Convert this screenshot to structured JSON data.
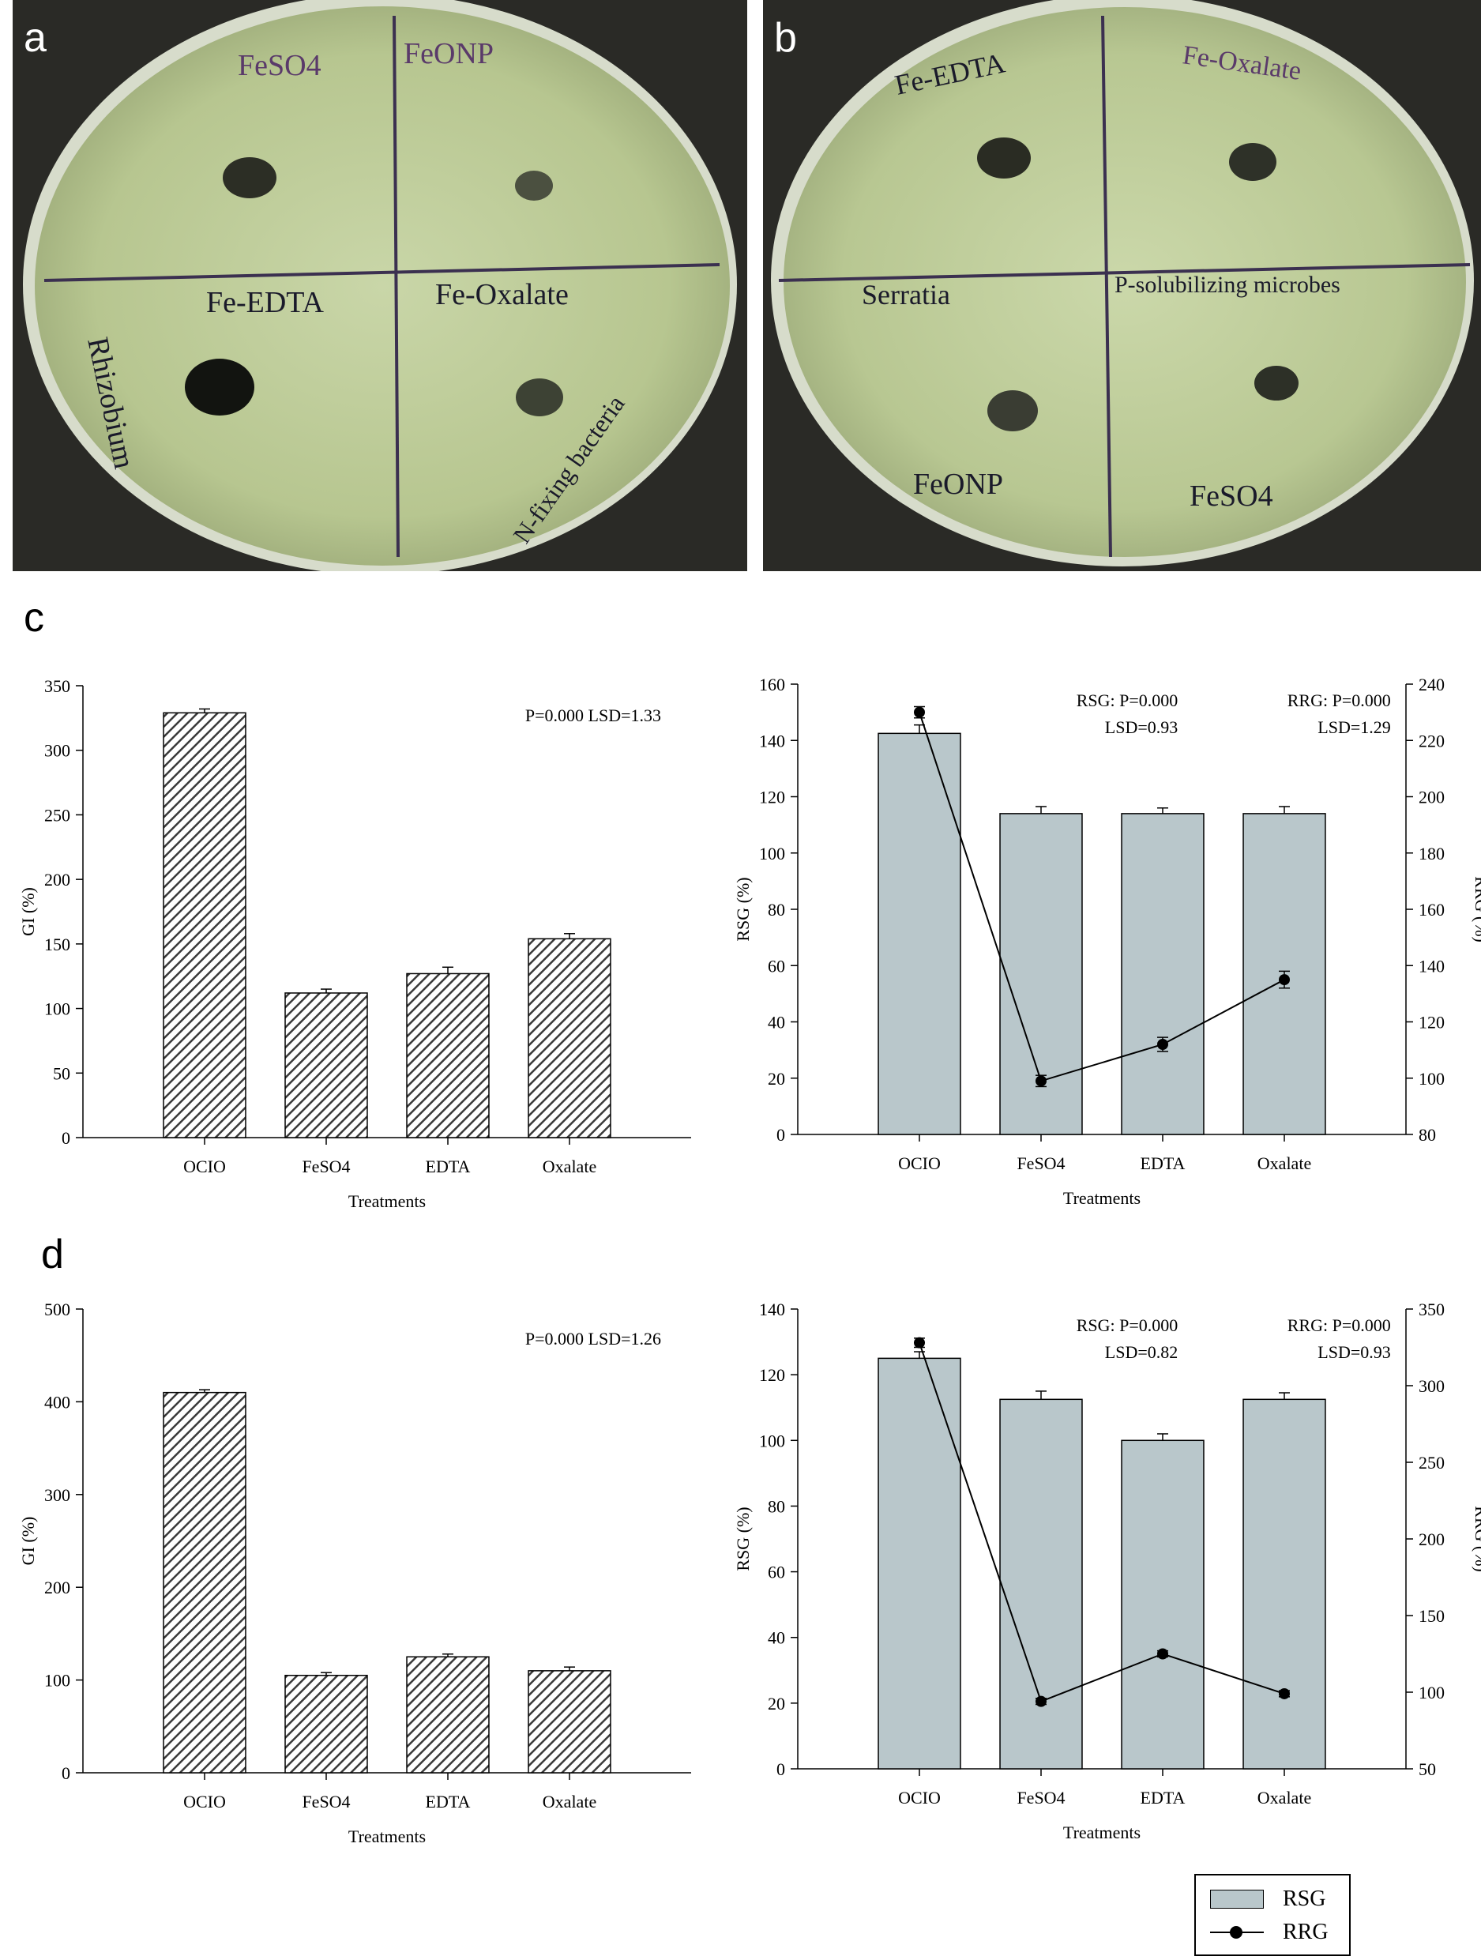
{
  "panels": {
    "a": {
      "letter": "a",
      "labels": [
        "FeSO4",
        "FeONP",
        "Fe-EDTA",
        "Fe-Oxalate",
        "Rhizobium",
        "N-fixing bacteria"
      ]
    },
    "b": {
      "letter": "b",
      "labels": [
        "Fe-EDTA",
        "Fe-Oxalate",
        "Serratia",
        "P-solubilizing microbes",
        "FeONP",
        "FeSO4"
      ]
    },
    "c": {
      "letter": "c"
    },
    "d": {
      "letter": "d"
    }
  },
  "legend": {
    "rsg": "RSG",
    "rrg": "RRG"
  },
  "colors": {
    "rsg_bar": "#b9c7cb",
    "gi_bar": "#3a3a3a",
    "line": "#000000"
  },
  "chart_data": [
    {
      "id": "c-left",
      "type": "bar",
      "panel": "c",
      "categories": [
        "OCIO",
        "FeSO4",
        "EDTA",
        "Oxalate"
      ],
      "values": [
        329,
        112,
        127,
        154
      ],
      "errors": [
        3,
        3,
        5,
        4
      ],
      "ylim": [
        0,
        350
      ],
      "yticks": [
        0,
        50,
        100,
        150,
        200,
        250,
        300,
        350
      ],
      "ylabel": "GI (%)",
      "xlabel": "Treatments",
      "annotations": [
        "P=0.000  LSD=1.33"
      ]
    },
    {
      "id": "c-right",
      "type": "bar+line",
      "panel": "c",
      "categories": [
        "OCIO",
        "FeSO4",
        "EDTA",
        "Oxalate"
      ],
      "series": [
        {
          "name": "RSG",
          "axis": "left",
          "values": [
            142.5,
            114,
            114,
            114
          ],
          "errors": [
            3,
            2.5,
            2,
            2.5
          ]
        },
        {
          "name": "RRG",
          "axis": "right",
          "values": [
            230,
            99,
            112,
            135
          ],
          "errors": [
            2,
            2,
            2.5,
            3
          ]
        }
      ],
      "ylim": [
        0,
        160
      ],
      "yticks": [
        0,
        20,
        40,
        60,
        80,
        100,
        120,
        140,
        160
      ],
      "y2lim": [
        80,
        240
      ],
      "y2ticks": [
        80,
        100,
        120,
        140,
        160,
        180,
        200,
        220,
        240
      ],
      "ylabel": "RSG (%)",
      "y2label": "RRG (%)",
      "xlabel": "Treatments",
      "annotations": [
        "RSG: P=0.000",
        "LSD=0.93",
        "RRG: P=0.000",
        "LSD=1.29"
      ]
    },
    {
      "id": "d-left",
      "type": "bar",
      "panel": "d",
      "categories": [
        "OCIO",
        "FeSO4",
        "EDTA",
        "Oxalate"
      ],
      "values": [
        410,
        105,
        125,
        110
      ],
      "errors": [
        3,
        3,
        3,
        4
      ],
      "ylim": [
        0,
        500
      ],
      "yticks": [
        0,
        100,
        200,
        300,
        400,
        500
      ],
      "ylabel": "GI (%)",
      "xlabel": "Treatments",
      "annotations": [
        "P=0.000   LSD=1.26"
      ]
    },
    {
      "id": "d-right",
      "type": "bar+line",
      "panel": "d",
      "categories": [
        "OCIO",
        "FeSO4",
        "EDTA",
        "Oxalate"
      ],
      "series": [
        {
          "name": "RSG",
          "axis": "left",
          "values": [
            125,
            112.5,
            100,
            112.5
          ],
          "errors": [
            2,
            2.5,
            2,
            2
          ]
        },
        {
          "name": "RRG",
          "axis": "right",
          "values": [
            328,
            94,
            125,
            99
          ],
          "errors": [
            3,
            2,
            2,
            2
          ]
        }
      ],
      "ylim": [
        0,
        140
      ],
      "yticks": [
        0,
        20,
        40,
        60,
        80,
        100,
        120,
        140
      ],
      "y2lim": [
        50,
        350
      ],
      "y2ticks": [
        50,
        100,
        150,
        200,
        250,
        300,
        350
      ],
      "ylabel": "RSG (%)",
      "y2label": "RRG (%)",
      "xlabel": "Treatments",
      "annotations": [
        "RSG: P=0.000",
        "LSD=0.82",
        "RRG: P=0.000",
        "LSD=0.93"
      ]
    }
  ]
}
